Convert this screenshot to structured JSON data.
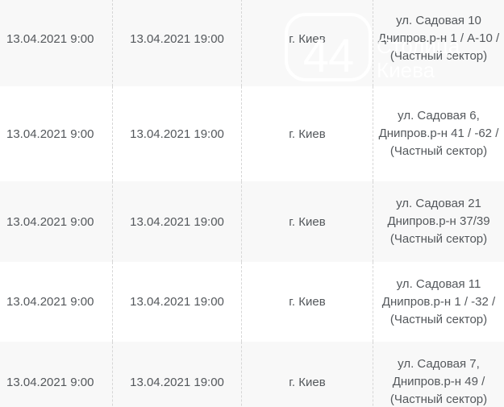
{
  "table": {
    "columns": [
      {
        "key": "start",
        "label": ""
      },
      {
        "key": "end",
        "label": ""
      },
      {
        "key": "city",
        "label": ""
      },
      {
        "key": "address",
        "label": ""
      }
    ],
    "rows": [
      {
        "start": "13.04.2021 9:00",
        "end": "13.04.2021 19:00",
        "city": "г. Киев",
        "address": "ул. Садовая 10 Днипров.р-н 1 / А-10 / (Частный сектор)"
      },
      {
        "start": "13.04.2021 9:00",
        "end": "13.04.2021 19:00",
        "city": "г. Киев",
        "address": "ул. Садовая 6, Днипров.р-н 41 / -62 / (Частный сектор)"
      },
      {
        "start": "13.04.2021 9:00",
        "end": "13.04.2021 19:00",
        "city": "г. Киев",
        "address": "ул. Садовая 21 Днипров.р-н 37/39 (Частный сектор)"
      },
      {
        "start": "13.04.2021 9:00",
        "end": "13.04.2021 19:00",
        "city": "г. Киев",
        "address": "ул. Садовая 11 Днипров.р-н 1 / -32 / (Частный сектор)"
      },
      {
        "start": "13.04.2021 9:00",
        "end": "13.04.2021 19:00",
        "city": "г. Киев",
        "address": "ул. Садовая 7, Днипров.р-н 49 / (Частный сектор)"
      }
    ]
  },
  "watermark": {
    "number": "44",
    "caption_line1": "Столица",
    "caption_line2": "Киева"
  },
  "colors": {
    "row_shaded": "#f8f8f8",
    "row_plain": "#ffffff",
    "text": "#54585c",
    "divider": "#d6d6d6",
    "watermark": "#ffffff"
  }
}
